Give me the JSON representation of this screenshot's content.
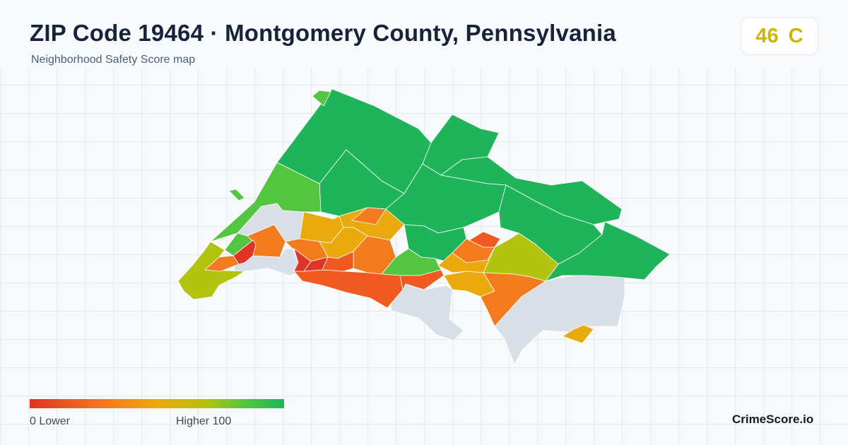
{
  "header": {
    "title": "ZIP Code 19464 · Montgomery County, Pennsylvania",
    "subtitle": "Neighborhood Safety Score map",
    "score": "46",
    "grade": "C",
    "grade_color": "#c9b606"
  },
  "legend": {
    "min_label": "0  Lower",
    "max_label": "Higher  100",
    "scale_min": 0,
    "scale_max": 100,
    "colors": [
      "#e03426",
      "#f37b1e",
      "#eaa90c",
      "#b2c40f",
      "#53c540",
      "#1fb45a"
    ]
  },
  "map": {
    "no_data_color": "#d8dfe6",
    "region_colors": {
      "top_score": "#1fb45a",
      "high": "#53c540",
      "mid_high": "#b2c40f",
      "mid": "#eaa90c",
      "mid_low": "#f37b1e",
      "low": "#f0591f",
      "lowest": "#e03426"
    }
  },
  "brand": "CrimeScore.io"
}
